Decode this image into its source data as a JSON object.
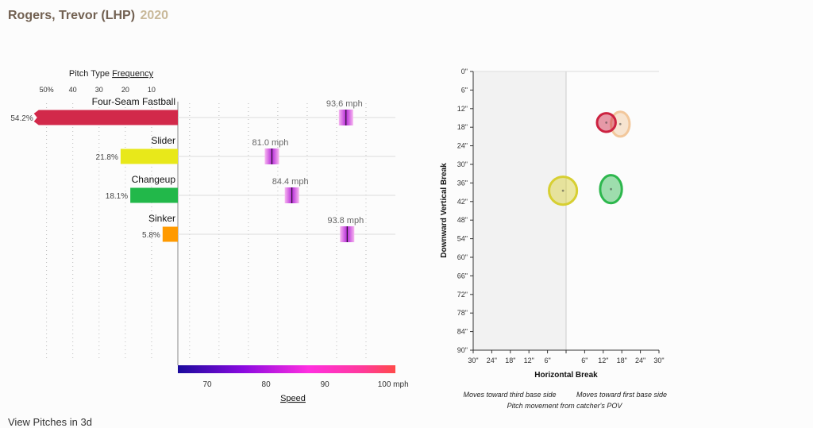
{
  "header": {
    "player": "Rogers, Trevor (LHP)",
    "year": "2020"
  },
  "chart_data": [
    {
      "type": "bar",
      "title": "Pitch Type Frequency",
      "title_prefix": "Pitch Type",
      "title_link": "Frequency",
      "xlabel": "Speed",
      "freq_ticks": [
        "50%",
        "40",
        "30",
        "20",
        "10"
      ],
      "speed_ticks": [
        "70",
        "80",
        "90",
        "100 mph"
      ],
      "speed_range": [
        65,
        102
      ],
      "freq_range": [
        0,
        52
      ],
      "categories": [
        "Four-Seam Fastball",
        "Slider",
        "Changeup",
        "Sinker"
      ],
      "series": [
        {
          "values": [
            54.2,
            21.8,
            18.1,
            5.8
          ],
          "labels": [
            "54.2%",
            "21.8%",
            "18.1%",
            "5.8%"
          ]
        },
        {
          "values": [
            93.6,
            81.0,
            84.4,
            93.8
          ],
          "labels": [
            "93.6 mph",
            "81.0 mph",
            "84.4 mph",
            "93.8 mph"
          ]
        }
      ],
      "colors": [
        "#d2294a",
        "#e8e81a",
        "#22b84a",
        "#ff9a00"
      ],
      "grid": true
    },
    {
      "type": "scatter",
      "xlabel": "Horizontal Break",
      "ylabel": "Downward Vertical Break",
      "x_ticks": [
        "30\"",
        "24\"",
        "18\"",
        "12\"",
        "6\"",
        "",
        "6\"",
        "12\"",
        "18\"",
        "24\"",
        "30\""
      ],
      "y_ticks": [
        "0\"",
        "6\"",
        "12\"",
        "18\"",
        "24\"",
        "30\"",
        "36\"",
        "42\"",
        "48\"",
        "54\"",
        "60\"",
        "66\"",
        "72\"",
        "78\"",
        "84\"",
        "90\""
      ],
      "xlim": [
        -30,
        30
      ],
      "ylim": [
        0,
        90
      ],
      "points": [
        {
          "x": 17.5,
          "y": 17,
          "rx": 3,
          "ry": 4,
          "color": "#f2c79b"
        },
        {
          "x": 13,
          "y": 16.5,
          "rx": 3,
          "ry": 3,
          "color": "#cc2240"
        },
        {
          "x": 14.5,
          "y": 38,
          "rx": 3.5,
          "ry": 4.5,
          "color": "#2db74d"
        },
        {
          "x": -1,
          "y": 38.5,
          "rx": 4.5,
          "ry": 4.5,
          "color": "#d7cf32"
        }
      ],
      "annotations": [
        "Moves toward third base side",
        "Moves toward first base side",
        "Pitch movement from catcher's POV"
      ]
    }
  ],
  "footer": {
    "link": "View Pitches in 3d"
  }
}
